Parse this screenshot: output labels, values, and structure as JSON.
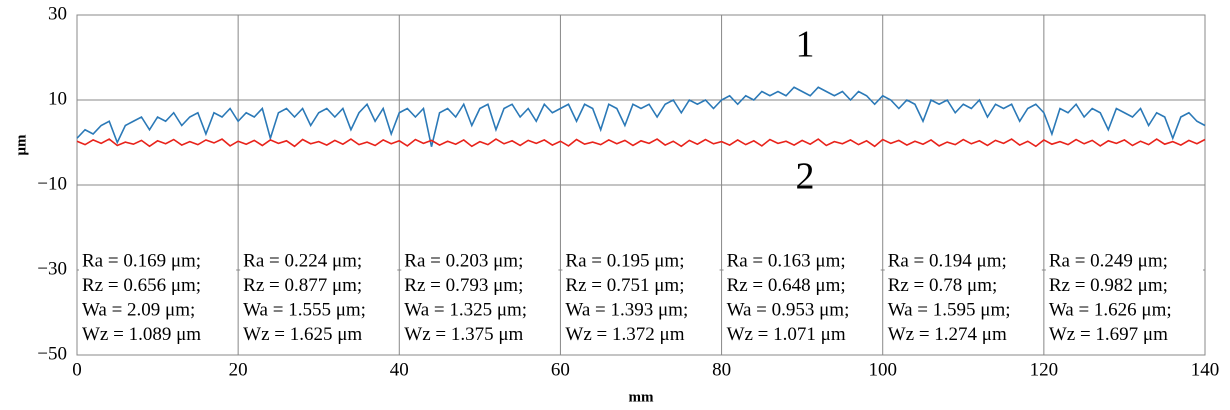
{
  "chart_data": {
    "type": "line",
    "xlabel": "mm",
    "ylabel": "μm",
    "xlim": [
      0,
      140
    ],
    "xticks": [
      0,
      20,
      40,
      60,
      80,
      100,
      120,
      140
    ],
    "ylim": [
      -50,
      30
    ],
    "yticks": [
      {
        "value": -50,
        "label": "−50"
      },
      {
        "value": -30,
        "label": "−30"
      },
      {
        "value": -10,
        "label": "−10"
      },
      10,
      30
    ],
    "grid": true,
    "x": [
      0,
      1,
      2,
      3,
      4,
      5,
      6,
      7,
      8,
      9,
      10,
      11,
      12,
      13,
      14,
      15,
      16,
      17,
      18,
      19,
      20,
      21,
      22,
      23,
      24,
      25,
      26,
      27,
      28,
      29,
      30,
      31,
      32,
      33,
      34,
      35,
      36,
      37,
      38,
      39,
      40,
      41,
      42,
      43,
      44,
      45,
      46,
      47,
      48,
      49,
      50,
      51,
      52,
      53,
      54,
      55,
      56,
      57,
      58,
      59,
      60,
      61,
      62,
      63,
      64,
      65,
      66,
      67,
      68,
      69,
      70,
      71,
      72,
      73,
      74,
      75,
      76,
      77,
      78,
      79,
      80,
      81,
      82,
      83,
      84,
      85,
      86,
      87,
      88,
      89,
      90,
      91,
      92,
      93,
      94,
      95,
      96,
      97,
      98,
      99,
      100,
      101,
      102,
      103,
      104,
      105,
      106,
      107,
      108,
      109,
      110,
      111,
      112,
      113,
      114,
      115,
      116,
      117,
      118,
      119,
      120,
      121,
      122,
      123,
      124,
      125,
      126,
      127,
      128,
      129,
      130,
      131,
      132,
      133,
      134,
      135,
      136,
      137,
      138,
      139,
      140
    ],
    "series": [
      {
        "color": "#2b79b7",
        "values": [
          1,
          3,
          2,
          4,
          5,
          0,
          4,
          5,
          6,
          3,
          6,
          5,
          7,
          4,
          6,
          7,
          2,
          7,
          6,
          8,
          5,
          7,
          6,
          8,
          1,
          7,
          8,
          6,
          8,
          4,
          7,
          8,
          6,
          8,
          3,
          7,
          9,
          5,
          8,
          2,
          7,
          8,
          6,
          8,
          -1,
          7,
          8,
          6,
          9,
          4,
          8,
          9,
          3,
          8,
          9,
          6,
          8,
          5,
          9,
          7,
          8,
          9,
          5,
          9,
          8,
          3,
          9,
          8,
          4,
          9,
          8,
          9,
          6,
          9,
          10,
          7,
          10,
          9,
          10,
          8,
          10,
          11,
          9,
          11,
          10,
          12,
          11,
          12,
          11,
          13,
          12,
          11,
          13,
          12,
          11,
          12,
          10,
          12,
          11,
          9,
          11,
          10,
          8,
          10,
          9,
          5,
          10,
          9,
          10,
          7,
          9,
          8,
          10,
          6,
          9,
          8,
          9,
          5,
          8,
          9,
          7,
          2,
          8,
          7,
          9,
          6,
          8,
          7,
          3,
          8,
          7,
          6,
          8,
          4,
          7,
          6,
          1,
          6,
          7,
          5,
          4
        ]
      },
      {
        "color": "#e8231b",
        "values": [
          0.3,
          -0.5,
          0.6,
          -0.2,
          0.8,
          -0.7,
          0.1,
          -0.4,
          0.5,
          -0.9,
          0.4,
          -0.3,
          0.7,
          -0.6,
          0.2,
          -0.5,
          0.6,
          -0.1,
          0.8,
          -0.8,
          0.3,
          -0.4,
          0.5,
          -0.7,
          0.6,
          -0.2,
          0.4,
          -0.9,
          0.7,
          -0.3,
          0.2,
          -0.6,
          0.5,
          -0.4,
          0.8,
          -0.5,
          0.1,
          -0.7,
          0.6,
          -0.3,
          0.4,
          -0.8,
          0.7,
          -0.2,
          0.5,
          -0.6,
          0.3,
          -0.4,
          0.6,
          -0.9,
          0.2,
          -0.5,
          0.8,
          -0.3,
          0.4,
          -0.7,
          0.5,
          -0.2,
          0.6,
          -0.6,
          0.3,
          -0.8,
          0.7,
          -0.4,
          0.1,
          -0.5,
          0.6,
          -0.3,
          0.5,
          -0.7,
          0.4,
          -0.2,
          0.8,
          -0.6,
          0.3,
          -0.9,
          0.5,
          -0.4,
          0.7,
          -0.3,
          0.2,
          -0.6,
          0.6,
          -0.5,
          0.4,
          -0.8,
          0.7,
          -0.2,
          0.3,
          -0.6,
          0.5,
          -0.4,
          0.8,
          -0.7,
          0.2,
          -0.3,
          0.6,
          -0.5,
          0.4,
          -0.9,
          0.7,
          -0.2,
          0.5,
          -0.6,
          0.3,
          -0.4,
          0.6,
          -0.8,
          0.1,
          -0.5,
          0.7,
          -0.3,
          0.4,
          -0.7,
          0.5,
          -0.2,
          0.8,
          -0.6,
          0.3,
          -0.9,
          0.6,
          -0.4,
          0.2,
          -0.5,
          0.7,
          -0.3,
          0.5,
          -0.8,
          0.4,
          -0.2,
          0.6,
          -0.7,
          0.3,
          -0.5,
          0.8,
          -0.4,
          0.2,
          -0.6,
          0.5,
          -0.3,
          0.7
        ]
      }
    ],
    "annotations": [
      "1",
      "2"
    ],
    "stats": [
      [
        "Ra = 0.169 μm;",
        "Rz = 0.656 μm;",
        "Wa = 2.09 μm;",
        "Wz = 1.089 μm"
      ],
      [
        "Ra = 0.224 μm;",
        "Rz = 0.877 μm;",
        "Wa = 1.555 μm;",
        "Wz = 1.625 μm"
      ],
      [
        "Ra = 0.203 μm;",
        "Rz = 0.793 μm;",
        "Wa = 1.325 μm;",
        "Wz = 1.375 μm"
      ],
      [
        "Ra = 0.195 μm;",
        "Rz = 0.751 μm;",
        "Wa = 1.393 μm;",
        "Wz = 1.372 μm"
      ],
      [
        "Ra = 0.163 μm;",
        "Rz = 0.648 μm;",
        "Wa = 0.953 μm;",
        "Wz = 1.071 μm"
      ],
      [
        "Ra = 0.194 μm;",
        "Rz = 0.78 μm;",
        "Wa = 1.595 μm;",
        "Wz = 1.274 μm"
      ],
      [
        "Ra = 0.249 μm;",
        "Rz = 0.982 μm;",
        "Wa = 1.626 μm;",
        "Wz = 1.697 μm"
      ]
    ]
  }
}
